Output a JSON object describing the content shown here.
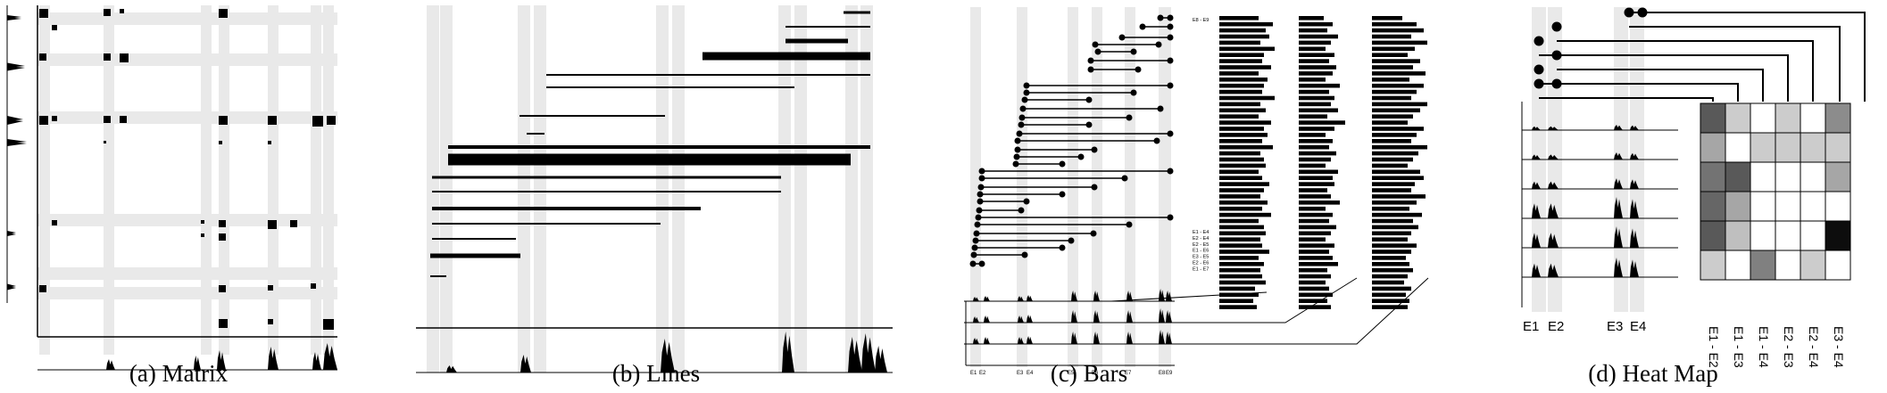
{
  "figure": {
    "panels": [
      {
        "id": "a",
        "caption": "(a)  Matrix"
      },
      {
        "id": "b",
        "caption": "(b)  Lines"
      },
      {
        "id": "c",
        "caption": "(c)  Bars",
        "top_label": "E8 - E9",
        "bottom_labels": [
          "E1 - E4",
          "E2 - E4",
          "E2 - E5",
          "E1 - E6",
          "E3 - E5",
          "E2 - E6",
          "E1 - E7"
        ],
        "track_labels": [
          "E1",
          "E2",
          "E3",
          "E4",
          "E5",
          "E6",
          "E7",
          "E8",
          "E9"
        ]
      },
      {
        "id": "d",
        "caption": "(d)  Heat Map",
        "exon_labels": [
          "E1",
          "E2",
          "E3",
          "E4"
        ],
        "column_labels": [
          "E1 - E2",
          "E1 - E3",
          "E1 - E4",
          "E2 - E3",
          "E2 - E4",
          "E3 - E4"
        ],
        "heat_values": [
          [
            0.65,
            0.2,
            0,
            0.2,
            0,
            0.45
          ],
          [
            0.35,
            0,
            0.2,
            0.2,
            0.2,
            0.2
          ],
          [
            0.55,
            0.65,
            0,
            0,
            0,
            0.35
          ],
          [
            0.6,
            0.35,
            0,
            0,
            0,
            0
          ],
          [
            0.65,
            0.25,
            0,
            0,
            0,
            0.95
          ],
          [
            0.2,
            0,
            0.5,
            0,
            0.2,
            0
          ]
        ]
      }
    ]
  }
}
